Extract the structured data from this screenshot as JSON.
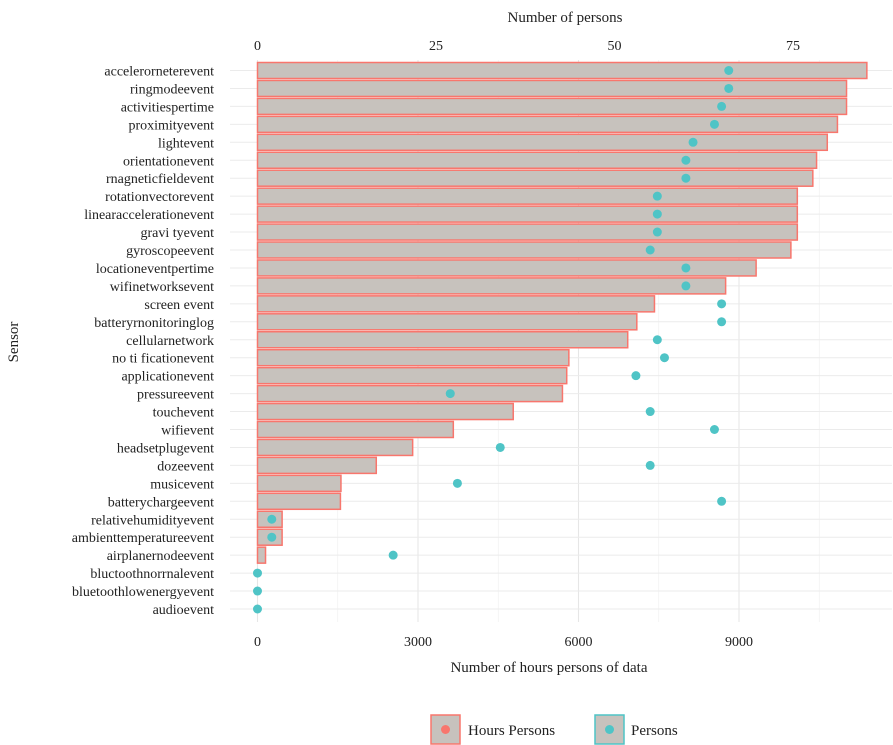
{
  "chart_data": {
    "type": "bar",
    "title": "",
    "ylabel": "Sensor",
    "xlabel_bottom": "Number of hours persons of data",
    "xlabel_top": "Number of persons",
    "x_bottom_range": [
      0,
      11400
    ],
    "x_bottom_ticks": [
      "0",
      "3000",
      "6000",
      "9000"
    ],
    "x_top_range": [
      0,
      88.4
    ],
    "x_top_ticks": [
      "0",
      "25",
      "50",
      "75"
    ],
    "grid": true,
    "legend_position": "bottom",
    "categories": [
      "accelerorneterevent",
      "ringmodeevent",
      "activitiespertime",
      "proximityevent",
      "lightevent",
      "orientationevent",
      "rnagneticfieldevent",
      "rotationvectorevent",
      "linearaccelerationevent",
      "gravi tyevent",
      "gyroscopeevent",
      "locationeventpertime",
      "wifinetworksevent",
      "screen event",
      "batteryrnonitoringlog",
      "cellularnetwork",
      "no ti ficationevent",
      "applicationevent",
      "pressureevent",
      "touchevent",
      "wifievent",
      "headsetplugevent",
      "dozeevent",
      "musicevent",
      "batterychargeevent",
      "relativehumidityevent",
      "ambienttemperatureevent",
      "airplanernodeevent",
      "bluctoothnorrnalevent",
      "bluetoothlowenergyevent",
      "audioevent"
    ],
    "series": [
      {
        "name": "Hours Persons",
        "axis": "bottom",
        "values": [
          11390,
          11010,
          11010,
          10840,
          10650,
          10450,
          10380,
          10090,
          10090,
          10090,
          9970,
          9320,
          8750,
          7420,
          7090,
          6920,
          5820,
          5780,
          5700,
          4780,
          3660,
          2900,
          2220,
          1560,
          1550,
          460,
          460,
          150,
          0,
          0,
          0
        ],
        "color": "#f8766d",
        "fill": "#c7c2bd"
      },
      {
        "name": "Persons",
        "axis": "top",
        "values": [
          66,
          66,
          65,
          64,
          61,
          60,
          60,
          56,
          56,
          56,
          55,
          60,
          60,
          65,
          65,
          56,
          57,
          53,
          27,
          55,
          64,
          34,
          55,
          28,
          65,
          2,
          2,
          19,
          0,
          0,
          0
        ],
        "color": "#4fc4c6"
      }
    ]
  }
}
